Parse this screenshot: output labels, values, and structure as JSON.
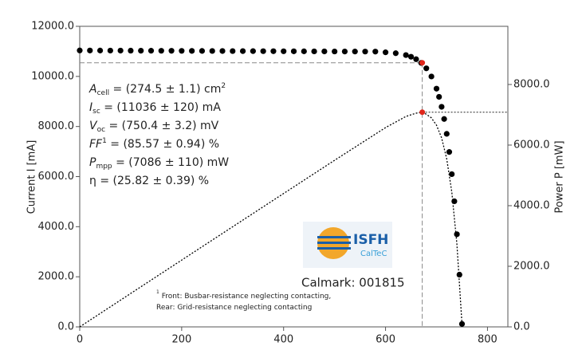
{
  "chart_data": {
    "type": "iv",
    "xlim": [
      0,
      840
    ],
    "xticks": [
      0,
      200,
      400,
      600,
      800
    ],
    "ylim": [
      0,
      12000
    ],
    "yticks": [
      {
        "value": 0,
        "label": "0.0"
      },
      {
        "value": 2000,
        "label": "2000.0"
      },
      {
        "value": 4000,
        "label": "4000.0"
      },
      {
        "value": 6000,
        "label": "6000.0"
      },
      {
        "value": 8000,
        "label": "8000.0"
      },
      {
        "value": 10000,
        "label": "10000.0"
      },
      {
        "value": 12000,
        "label": "12000.0"
      }
    ],
    "y2lim": [
      0,
      9920
    ],
    "y2ticks": [
      {
        "value": 0,
        "label": "0.0"
      },
      {
        "value": 2000,
        "label": "2000.0"
      },
      {
        "value": 4000,
        "label": "4000.0"
      },
      {
        "value": 6000,
        "label": "6000.0"
      },
      {
        "value": 8000,
        "label": "8000.0"
      }
    ],
    "ylabel": "Current I [mA]",
    "y2label": "Power P [mW]",
    "series": [
      {
        "color": "#000000",
        "style": "dots",
        "x": [
          0,
          20,
          40,
          60,
          80,
          100,
          120,
          140,
          160,
          180,
          200,
          220,
          240,
          260,
          280,
          300,
          320,
          340,
          360,
          380,
          400,
          420,
          440,
          460,
          480,
          500,
          520,
          540,
          560,
          580,
          600,
          620,
          640,
          650,
          660,
          670,
          680,
          690,
          700,
          705,
          710,
          715,
          720,
          725,
          730,
          735,
          740,
          745,
          750
        ],
        "values": [
          11036,
          11034,
          11033,
          11031,
          11030,
          11028,
          11026,
          11025,
          11023,
          11022,
          11020,
          11018,
          11017,
          11015,
          11014,
          11012,
          11010,
          11009,
          11007,
          11006,
          11004,
          11002,
          11001,
          10999,
          10998,
          10996,
          10994,
          10993,
          10991,
          10990,
          10961,
          10926,
          10852,
          10785,
          10686,
          10539,
          10322,
          9996,
          9510,
          9184,
          8786,
          8300,
          7707,
          6983,
          6098,
          5016,
          3697,
          2084,
          116
        ]
      },
      {
        "color": "#000000",
        "style": "dotted",
        "axis": "y2",
        "x": [
          0,
          100,
          200,
          300,
          400,
          500,
          600,
          640,
          660,
          672,
          680,
          690,
          700,
          710,
          720,
          730,
          740,
          750
        ],
        "values": [
          0,
          1103,
          2204,
          3304,
          4402,
          5498,
          6577,
          6945,
          7053,
          7086,
          7019,
          6897,
          6657,
          6238,
          5549,
          4452,
          2736,
          87
        ]
      }
    ],
    "mpp": {
      "x": 672,
      "y": 10545,
      "y2": 7086,
      "color": "#e0261b"
    },
    "annotations": [
      [
        {
          "t": "A",
          "style": "i"
        },
        {
          "t": "cell",
          "style": "sub"
        },
        {
          "t": " = (274.5 ± 1.1) cm"
        },
        {
          "t": "2",
          "style": "sup"
        }
      ],
      [
        {
          "t": "I",
          "style": "i"
        },
        {
          "t": "sc",
          "style": "sub"
        },
        {
          "t": " = (11036 ± 120) mA"
        }
      ],
      [
        {
          "t": "V",
          "style": "i"
        },
        {
          "t": "oc",
          "style": "sub"
        },
        {
          "t": " = (750.4 ± 3.2) mV"
        }
      ],
      [
        {
          "t": "FF",
          "style": "i"
        },
        {
          "t": "1",
          "style": "sup"
        },
        {
          "t": " = (85.57 ± 0.94) %"
        }
      ],
      [
        {
          "t": "P",
          "style": "i"
        },
        {
          "t": "mpp",
          "style": "sub"
        },
        {
          "t": " = (7086 ± 110) mW"
        }
      ],
      [
        {
          "t": "η = (25.82 ± 0.39) %"
        }
      ]
    ],
    "footnote": [
      [
        {
          "t": "1",
          "style": "sup"
        },
        {
          "t": " Front: Busbar-resistance neglecting contacting,"
        }
      ],
      [
        {
          "t": "Rear: Grid-resistance neglecting contacting"
        }
      ]
    ],
    "calmark": "Calmark: 001815",
    "logo": {
      "name": "ISFH",
      "sub": "CalTeC"
    }
  }
}
